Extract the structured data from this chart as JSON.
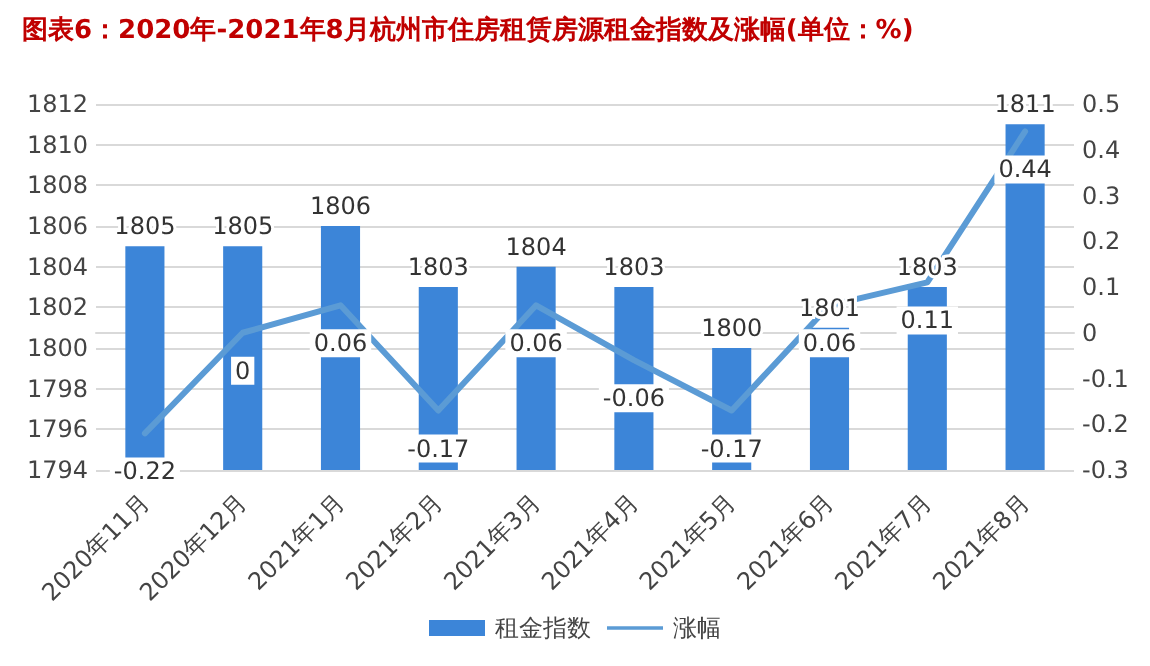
{
  "chart_data": {
    "type": "bar",
    "title": "图表6：2020年-2021年8月杭州市住房租赁房源租金指数及涨幅(单位：%)",
    "categories": [
      "2020年11月",
      "2020年12月",
      "2021年1月",
      "2021年2月",
      "2021年3月",
      "2021年4月",
      "2021年5月",
      "2021年6月",
      "2021年7月",
      "2021年8月"
    ],
    "series": [
      {
        "name": "租金指数",
        "type": "bar",
        "color": "#3c85d8",
        "values": [
          1805,
          1805,
          1806,
          1803,
          1804,
          1803,
          1800,
          1801,
          1803,
          1811
        ]
      },
      {
        "name": "涨幅",
        "type": "line",
        "axis": "y2",
        "color": "#5b9bd5",
        "values": [
          -0.22,
          0,
          0.06,
          -0.17,
          0.06,
          -0.06,
          -0.17,
          0.06,
          0.11,
          0.44
        ]
      }
    ],
    "ylim": [
      1794,
      1812
    ],
    "yticks": [
      1794,
      1796,
      1798,
      1800,
      1802,
      1804,
      1806,
      1808,
      1810,
      1812
    ],
    "y2lim": [
      -0.3,
      0.5
    ],
    "y2ticks": [
      -0.3,
      -0.2,
      -0.1,
      0,
      0.1,
      0.2,
      0.3,
      0.4,
      0.5
    ],
    "data_labels": true,
    "grid": "y",
    "legend": "bottom",
    "marker": "none",
    "line_style": "solid"
  }
}
